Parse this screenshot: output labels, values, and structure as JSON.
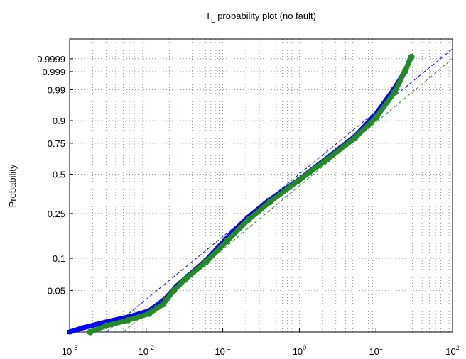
{
  "chart_data": {
    "type": "probability",
    "title": "T_L probability plot (no fault)",
    "y_label": "Probability",
    "x_scale": "log",
    "y_scale": "weibull",
    "grid": true,
    "xlim": [
      0.001,
      100
    ],
    "xticks": [
      {
        "value": 0.001,
        "label": "10^-3"
      },
      {
        "value": 0.01,
        "label": "10^-2"
      },
      {
        "value": 0.1,
        "label": "10^-1"
      },
      {
        "value": 1,
        "label": "10^0"
      },
      {
        "value": 10,
        "label": "10^1"
      },
      {
        "value": 100,
        "label": "10^2"
      }
    ],
    "ylim": [
      0.02,
      0.9999994
    ],
    "yticks": [
      0.05,
      0.1,
      0.25,
      0.5,
      0.75,
      0.9,
      0.99,
      0.999,
      0.9999
    ],
    "series": [
      {
        "marker": "x",
        "color": "#0000ff",
        "x": [
          0.001,
          0.0015,
          0.003,
          0.006,
          0.011,
          0.018,
          0.025,
          0.035,
          0.06,
          0.11,
          0.21,
          0.4,
          1.0,
          2.3,
          5.3,
          10,
          17,
          24,
          28
        ],
        "values": [
          0.02,
          0.022,
          0.025,
          0.028,
          0.032,
          0.042,
          0.055,
          0.068,
          0.095,
          0.15,
          0.23,
          0.32,
          0.46,
          0.63,
          0.8,
          0.93,
          0.99,
          0.999,
          0.9999
        ],
        "fit_x": [
          0.003,
          100
        ],
        "fit_values": [
          0.02,
          0.99999
        ]
      },
      {
        "marker": "o",
        "color": "#228b22",
        "x": [
          0.00186,
          0.003,
          0.0058,
          0.0109,
          0.0167,
          0.023,
          0.0317,
          0.06,
          0.114,
          0.217,
          0.413,
          0.97,
          2.3,
          5.3,
          10.2,
          17.5,
          24,
          29
        ],
        "values": [
          0.02,
          0.023,
          0.026,
          0.03,
          0.037,
          0.05,
          0.063,
          0.092,
          0.144,
          0.222,
          0.311,
          0.451,
          0.619,
          0.789,
          0.918,
          0.987,
          0.9991,
          0.99993
        ],
        "fit_x": [
          0.005,
          100
        ],
        "fit_values": [
          0.02,
          0.9999
        ]
      }
    ]
  }
}
